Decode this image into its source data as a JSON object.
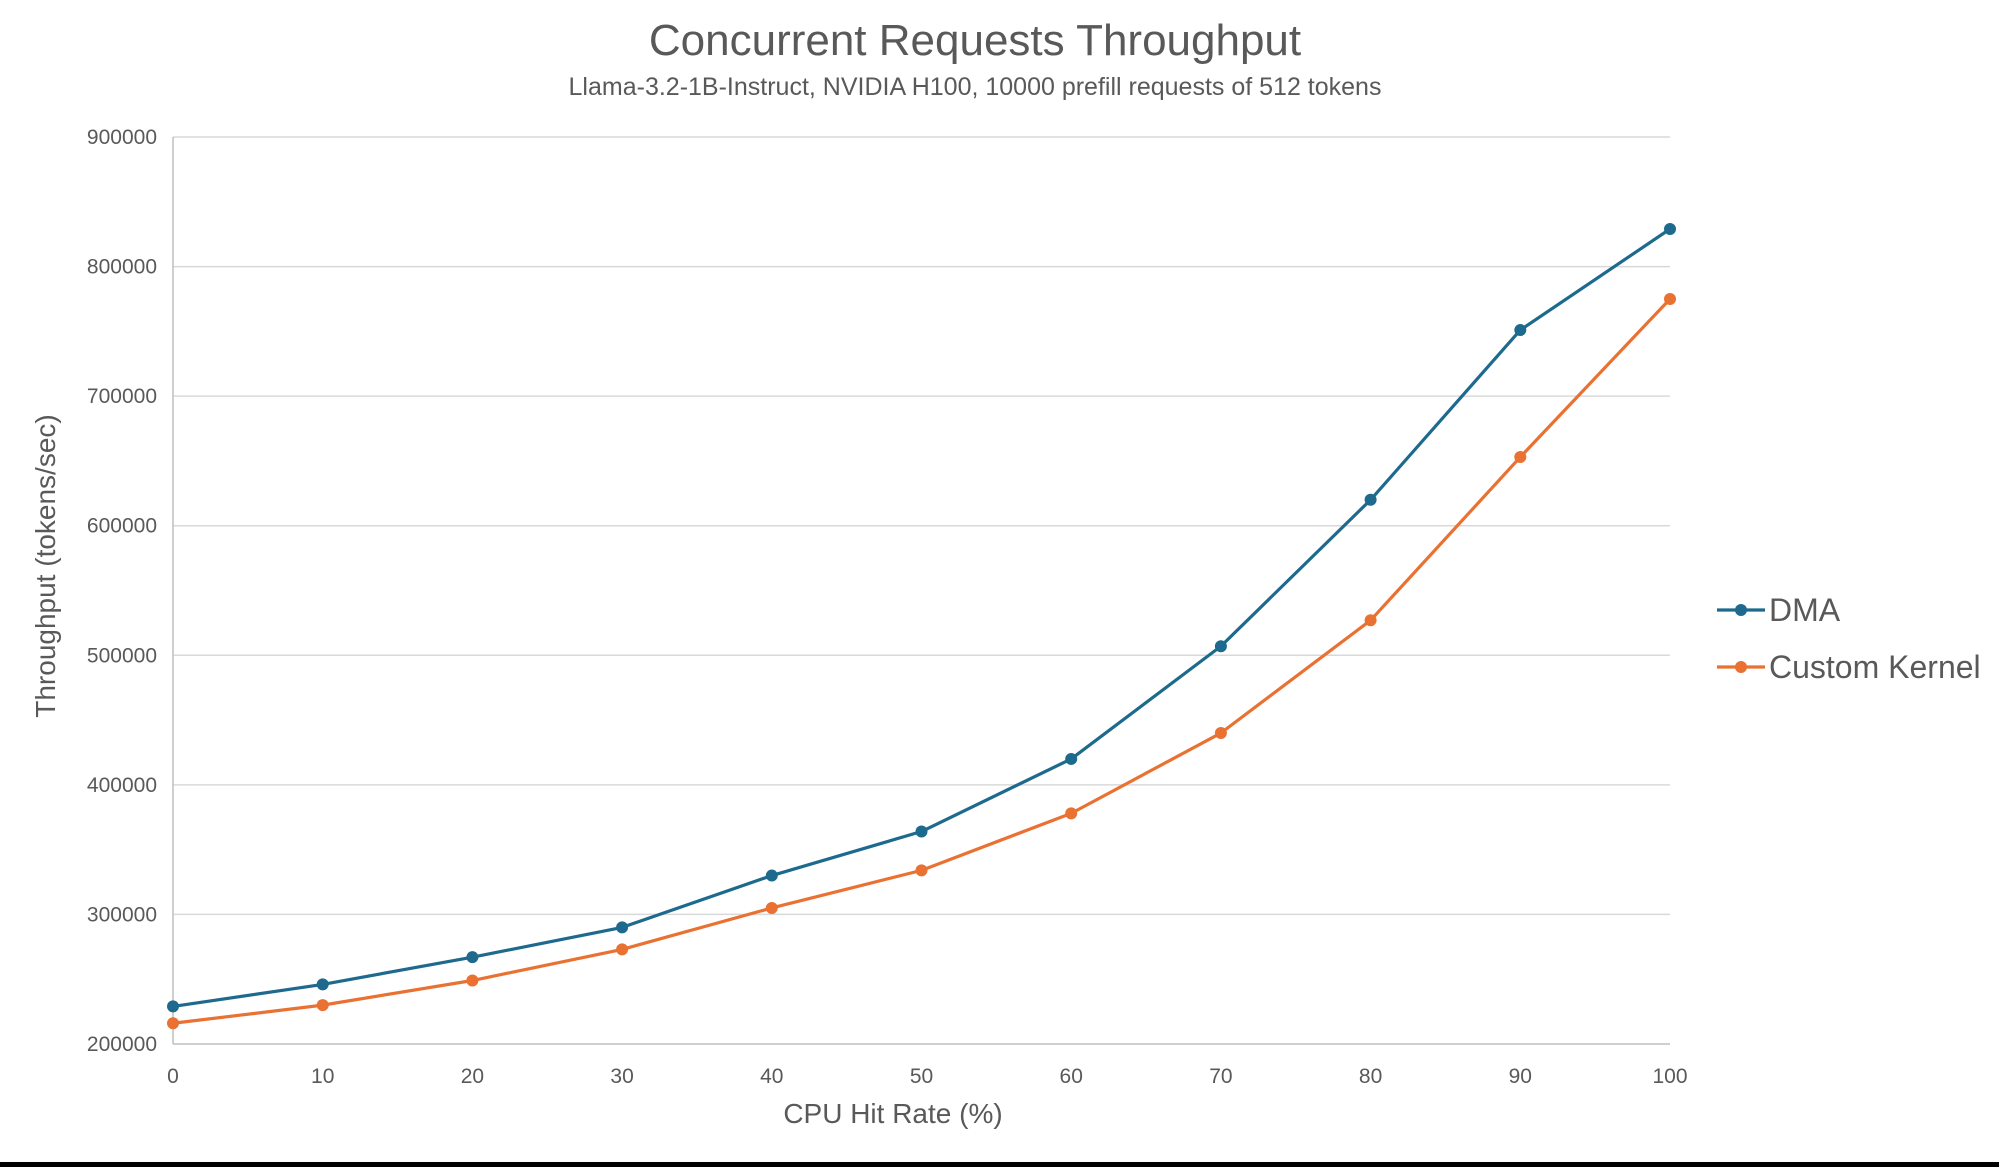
{
  "page": {
    "background": "#FFFFFF",
    "bottom_bar_color": "#000000"
  },
  "chart_data": {
    "type": "line",
    "title": "Concurrent Requests Throughput",
    "subtitle": "Llama-3.2-1B-Instruct, NVIDIA H100, 10000 prefill requests of 512 tokens",
    "xlabel": "CPU Hit Rate (%)",
    "ylabel": "Throughput (tokens/sec)",
    "x": [
      0,
      10,
      20,
      30,
      40,
      50,
      60,
      70,
      80,
      90,
      100
    ],
    "x_tick_labels": [
      "0",
      "10",
      "20",
      "30",
      "40",
      "50",
      "60",
      "70",
      "80",
      "90",
      "100"
    ],
    "ylim": [
      200000,
      900000
    ],
    "y_ticks": [
      200000,
      300000,
      400000,
      500000,
      600000,
      700000,
      800000,
      900000
    ],
    "y_tick_labels": [
      "200000",
      "300000",
      "400000",
      "500000",
      "600000",
      "700000",
      "800000",
      "900000"
    ],
    "grid": true,
    "legend_position": "right-middle",
    "series": [
      {
        "name": "DMA",
        "color": "#1D6A8E",
        "values": [
          229000,
          246000,
          267000,
          290000,
          330000,
          364000,
          420000,
          507000,
          620000,
          751000,
          829000
        ]
      },
      {
        "name": "Custom Kernel",
        "color": "#E97132",
        "values": [
          216000,
          230000,
          249000,
          273000,
          305000,
          334000,
          378000,
          440000,
          527000,
          653000,
          775000
        ]
      }
    ],
    "styles": {
      "text_color": "#595959",
      "grid_color": "#D9D9D9",
      "axis_color": "#BFBFBF",
      "line_width": 3.2,
      "marker_radius": 6
    }
  }
}
